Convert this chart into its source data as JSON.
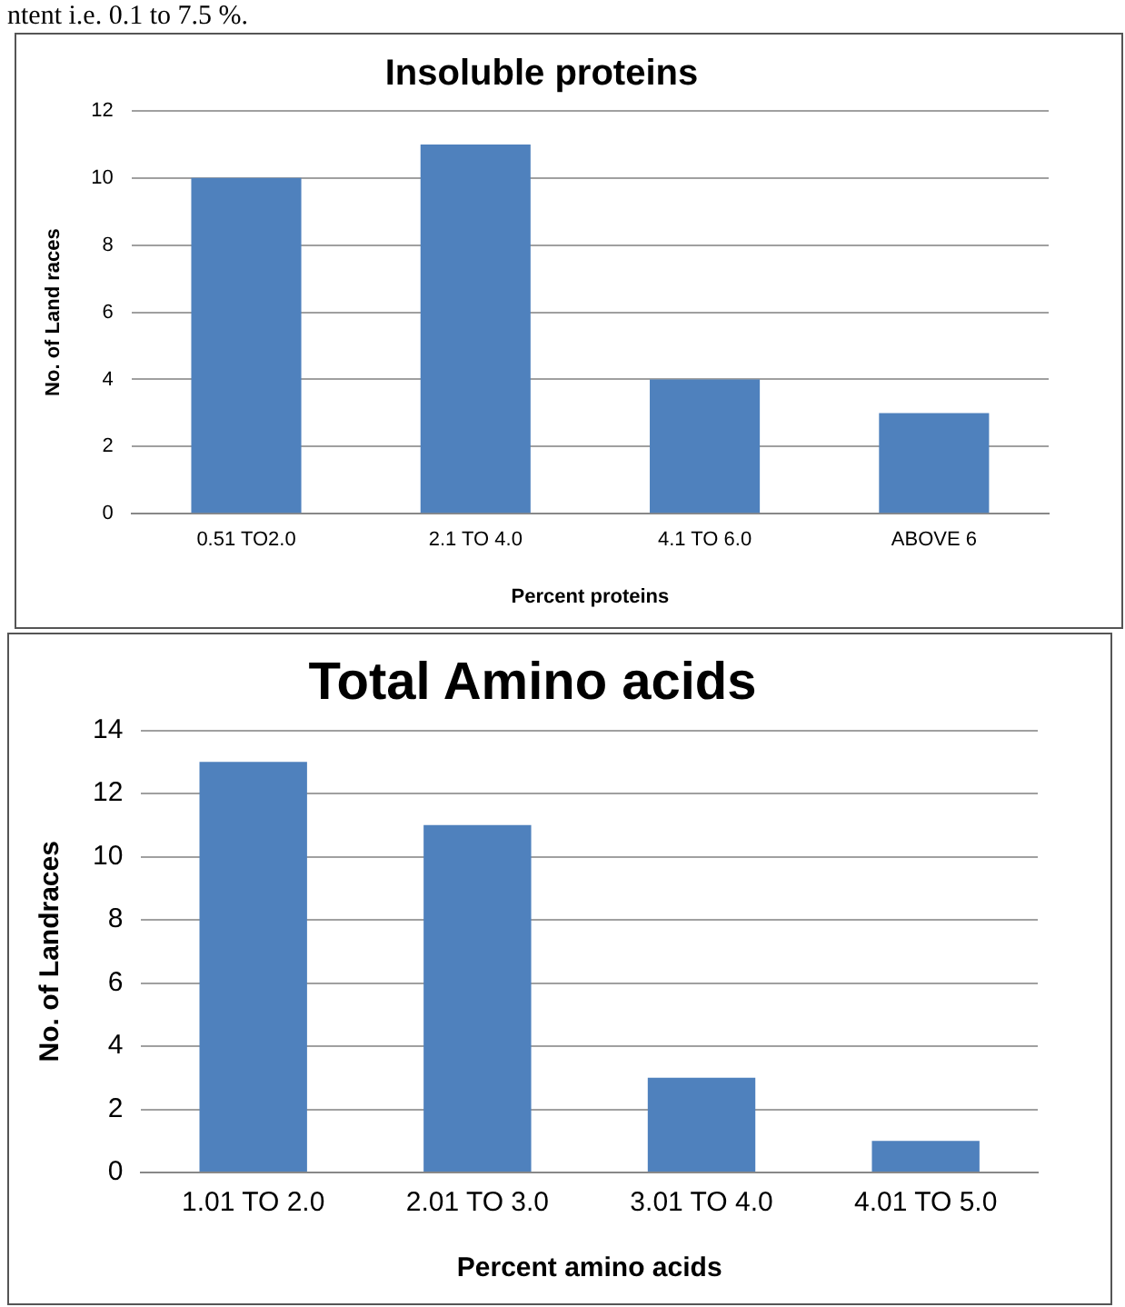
{
  "chart_data": [
    {
      "type": "bar",
      "title": "Insoluble proteins",
      "xlabel": "Percent proteins",
      "ylabel": "No. of Land races",
      "categories": [
        "0.51 TO2.0",
        "2.1 TO 4.0",
        "4.1 TO 6.0",
        "ABOVE 6"
      ],
      "values": [
        10,
        11,
        4,
        3
      ],
      "color": "#4f81bd",
      "ylim": [
        0,
        12
      ],
      "yticks": [
        0,
        2,
        4,
        6,
        8,
        10,
        12
      ],
      "grid": "y",
      "annotations": [
        "ntent i.e. 0.1 to 7.5 %."
      ]
    },
    {
      "type": "bar",
      "title": "Total Amino acids",
      "xlabel": "Percent amino acids",
      "ylabel": "No. of Landraces",
      "categories": [
        "1.01 TO 2.0",
        "2.01 TO 3.0",
        "3.01 TO 4.0",
        "4.01 TO 5.0"
      ],
      "values": [
        13,
        11,
        3,
        1
      ],
      "color": "#4f81bd",
      "ylim": [
        0,
        14
      ],
      "yticks": [
        0,
        2,
        4,
        6,
        8,
        10,
        12,
        14
      ],
      "grid": "y"
    }
  ]
}
